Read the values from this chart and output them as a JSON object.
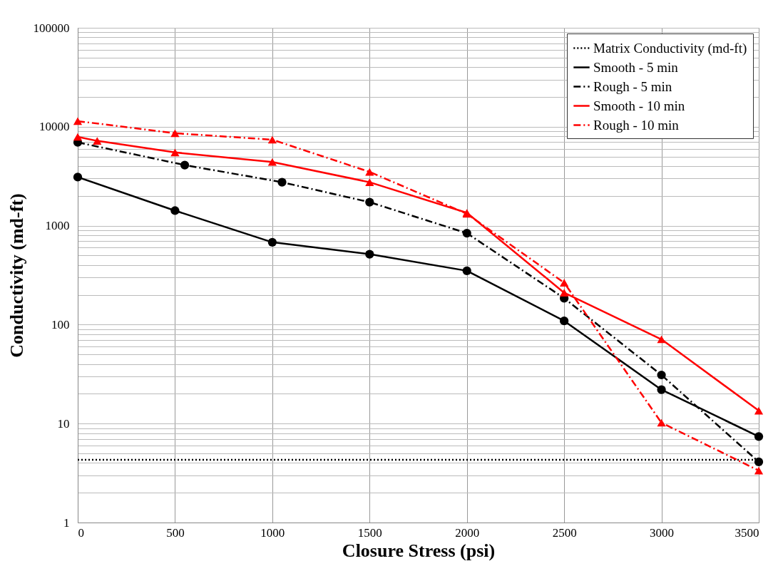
{
  "chart_data": {
    "type": "line",
    "xlabel": "Closure Stress (psi)",
    "ylabel": "Conductivity (md-ft)",
    "log": "y",
    "grid": true,
    "legend": "top right",
    "xlim": [
      0,
      3500
    ],
    "xticks": [
      0,
      500,
      1000,
      1500,
      2000,
      2500,
      3000,
      3500
    ],
    "ylim": [
      1,
      100000
    ],
    "yticks": [
      1,
      {
        "value": 2,
        "label": null
      },
      {
        "value": 3,
        "label": null
      },
      {
        "value": 4,
        "label": null
      },
      {
        "value": 5,
        "label": null
      },
      {
        "value": 6,
        "label": null
      },
      {
        "value": 7,
        "label": null
      },
      {
        "value": 8,
        "label": null
      },
      {
        "value": 9,
        "label": null
      },
      10,
      {
        "value": 20,
        "label": null
      },
      {
        "value": 30,
        "label": null
      },
      {
        "value": 40,
        "label": null
      },
      {
        "value": 50,
        "label": null
      },
      {
        "value": 60,
        "label": null
      },
      {
        "value": 70,
        "label": null
      },
      {
        "value": 80,
        "label": null
      },
      {
        "value": 90,
        "label": null
      },
      100,
      {
        "value": 200,
        "label": null
      },
      {
        "value": 300,
        "label": null
      },
      {
        "value": 400,
        "label": null
      },
      {
        "value": 500,
        "label": null
      },
      {
        "value": 600,
        "label": null
      },
      {
        "value": 700,
        "label": null
      },
      {
        "value": 800,
        "label": null
      },
      {
        "value": 900,
        "label": null
      },
      1000,
      {
        "value": 2000,
        "label": null
      },
      {
        "value": 3000,
        "label": null
      },
      {
        "value": 4000,
        "label": null
      },
      {
        "value": 5000,
        "label": null
      },
      {
        "value": 6000,
        "label": null
      },
      {
        "value": 7000,
        "label": null
      },
      {
        "value": 8000,
        "label": null
      },
      {
        "value": 9000,
        "label": null
      },
      10000,
      {
        "value": 20000,
        "label": null
      },
      {
        "value": 30000,
        "label": null
      },
      {
        "value": 40000,
        "label": null
      },
      {
        "value": 50000,
        "label": null
      },
      {
        "value": 60000,
        "label": null
      },
      {
        "value": 70000,
        "label": null
      },
      {
        "value": 80000,
        "label": null
      },
      {
        "value": 90000,
        "label": null
      },
      100000
    ],
    "series": [
      {
        "name": "Matrix Conductivity (md-ft)",
        "color": "#000000",
        "line_style": "dotted",
        "marker": "none",
        "x": [
          0,
          3500
        ],
        "values": [
          4.3,
          4.3
        ]
      },
      {
        "name": "Smooth - 5 min",
        "color": "#000000",
        "line_style": "solid",
        "marker": "circle",
        "x": [
          0,
          500,
          1000,
          1500,
          2000,
          2500,
          3000,
          3500
        ],
        "values": [
          3100,
          1420,
          680,
          515,
          350,
          109,
          22,
          7.4
        ]
      },
      {
        "name": "Rough - 5 min",
        "color": "#000000",
        "line_style": "dashed",
        "marker": "circle",
        "x": [
          0,
          550,
          1050,
          1500,
          2000,
          2500,
          3000,
          3500
        ],
        "values": [
          6950,
          4100,
          2750,
          1730,
          840,
          185,
          31,
          4.1
        ]
      },
      {
        "name": "Smooth - 10 min",
        "color": "#ff0000",
        "line_style": "solid",
        "marker": "triangle",
        "x": [
          0,
          100,
          500,
          1000,
          1500,
          2000,
          2500,
          3000,
          3500
        ],
        "values": [
          7900,
          7200,
          5500,
          4400,
          2750,
          1350,
          210,
          71,
          13.5
        ]
      },
      {
        "name": "Rough - 10 min",
        "color": "#ff0000",
        "line_style": "dashed",
        "marker": "triangle",
        "x": [
          0,
          500,
          1000,
          1500,
          2000,
          2500,
          3000,
          3500
        ],
        "values": [
          11400,
          8600,
          7400,
          3500,
          1320,
          265,
          10.2,
          3.35
        ]
      }
    ]
  }
}
